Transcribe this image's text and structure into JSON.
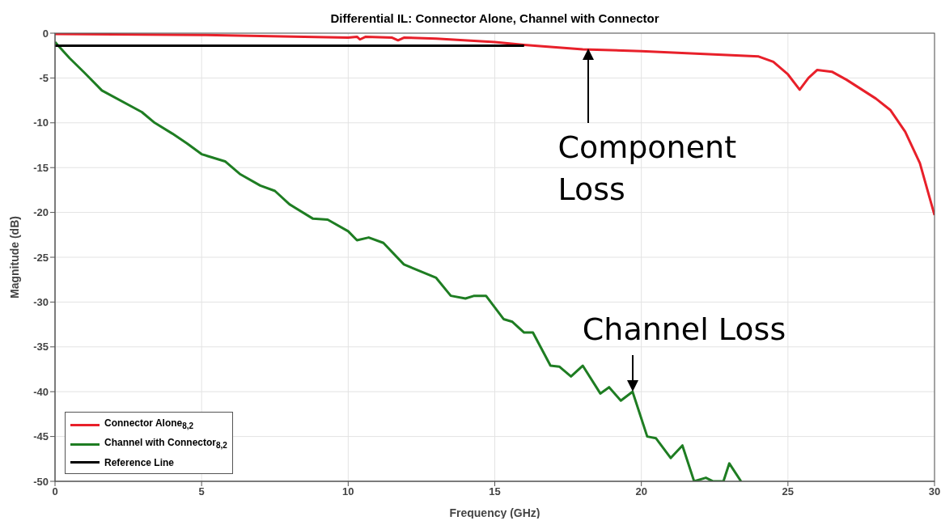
{
  "chart_data": {
    "type": "line",
    "title": "Differential IL: Connector Alone, Channel with Connector",
    "xlabel": "Frequency (GHz)",
    "ylabel": "Magnitude (dB)",
    "xlim": [
      0,
      30
    ],
    "xticks": [
      0,
      5,
      10,
      15,
      20,
      25,
      30
    ],
    "ylim": [
      -50,
      0
    ],
    "yticks": [
      0,
      -5,
      -10,
      -15,
      -20,
      -25,
      -30,
      -35,
      -40,
      -45,
      -50
    ],
    "grid": true,
    "legend": "bottom left",
    "marker": "none",
    "line_style": "solid",
    "series": [
      {
        "name": "Connector Alone$_{8,2}$",
        "color": "#e8202a",
        "x": [
          0,
          5,
          10,
          10.3,
          10.4,
          10.6,
          11.5,
          11.7,
          11.9,
          13,
          15,
          16,
          18,
          20,
          22,
          24,
          24.5,
          25,
          25.4,
          25.7,
          26,
          26.5,
          27,
          28,
          28.5,
          29,
          29.5,
          30
        ],
        "values": [
          -0.1,
          -0.2,
          -0.5,
          -0.4,
          -0.7,
          -0.4,
          -0.5,
          -0.8,
          -0.5,
          -0.6,
          -1.0,
          -1.3,
          -1.8,
          -2.0,
          -2.3,
          -2.6,
          -3.2,
          -4.6,
          -6.3,
          -5.0,
          -4.1,
          -4.3,
          -5.2,
          -7.3,
          -8.6,
          -11,
          -14.5,
          -20.3
        ]
      },
      {
        "name": "Channel with Connector$_{8,2}$",
        "color": "#1e7d22",
        "x": [
          0,
          0.5,
          1,
          1.6,
          2.96,
          3.4,
          4,
          4.5,
          5,
          5.8,
          6.3,
          7,
          7.5,
          8,
          8.8,
          9.3,
          10,
          10.3,
          10.7,
          11.2,
          11.9,
          13,
          13.5,
          14,
          14.3,
          14.7,
          15.3,
          15.6,
          16,
          16.3,
          16.9,
          17.2,
          17.6,
          18,
          18.6,
          18.9,
          19.3,
          19.7,
          20.2,
          20.5,
          21,
          21.4,
          21.8,
          22.2,
          22.45,
          22.8,
          23,
          23.4
        ],
        "values": [
          -1,
          -2.8,
          -4.4,
          -6.4,
          -8.8,
          -10,
          -11.2,
          -12.3,
          -13.5,
          -14.3,
          -15.7,
          -17,
          -17.6,
          -19.1,
          -20.7,
          -20.8,
          -22.1,
          -23.1,
          -22.8,
          -23.4,
          -25.8,
          -27.3,
          -29.3,
          -29.6,
          -29.3,
          -29.3,
          -31.9,
          -32.2,
          -33.4,
          -33.4,
          -37.1,
          -37.2,
          -38.3,
          -37.1,
          -40.2,
          -39.5,
          -41,
          -40,
          -45,
          -45.2,
          -47.4,
          -46,
          -50,
          -49.6,
          -50,
          -50,
          -48,
          -50
        ]
      },
      {
        "name": "Reference Line",
        "color": "#000000",
        "x": [
          0,
          16
        ],
        "values": [
          -1.4,
          -1.4
        ]
      }
    ],
    "annotations": [
      {
        "text": "Component Loss",
        "x": 18.2,
        "y": -1.7
      },
      {
        "text": "Channel Loss",
        "x": 19.7,
        "y": -40
      }
    ]
  }
}
